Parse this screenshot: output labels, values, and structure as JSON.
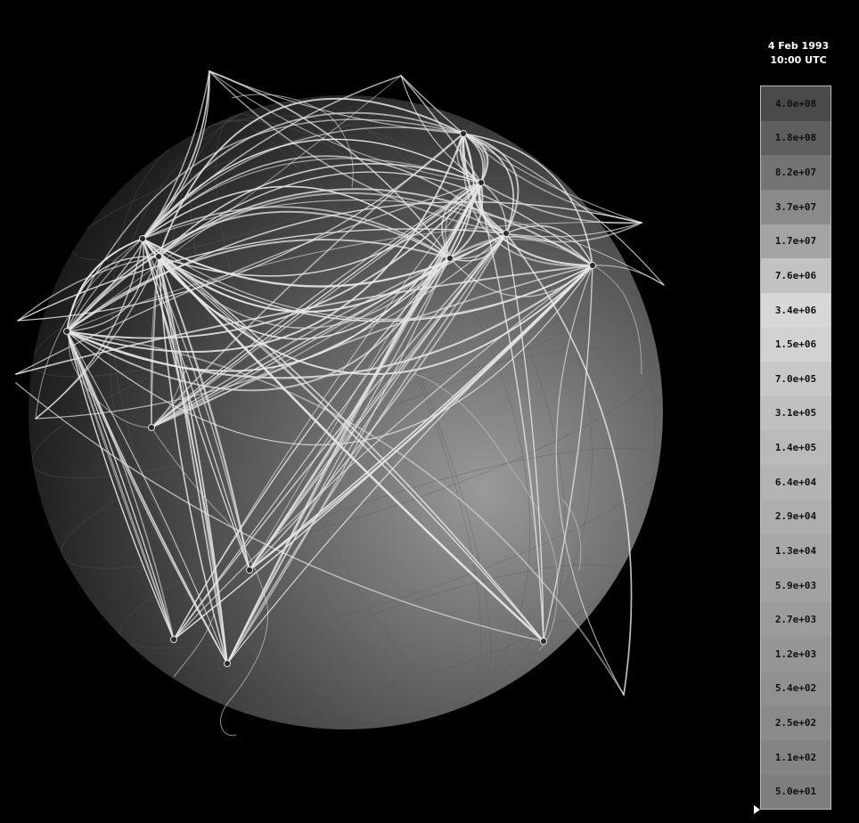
{
  "timestamp": {
    "date": "4 Feb 1993",
    "time": "10:00 UTC"
  },
  "legend": {
    "items": [
      {
        "label": "4.0e+08",
        "color": "#4a4a4a"
      },
      {
        "label": "1.8e+08",
        "color": "#5e5e5e"
      },
      {
        "label": "8.2e+07",
        "color": "#747474"
      },
      {
        "label": "3.7e+07",
        "color": "#8a8a8a"
      },
      {
        "label": "1.7e+07",
        "color": "#a4a4a4"
      },
      {
        "label": "7.6e+06",
        "color": "#c2c2c2"
      },
      {
        "label": "3.4e+06",
        "color": "#d8d8d8"
      },
      {
        "label": "1.5e+06",
        "color": "#d2d2d2"
      },
      {
        "label": "7.0e+05",
        "color": "#c8c8c8"
      },
      {
        "label": "3.1e+05",
        "color": "#c0c0c0"
      },
      {
        "label": "1.4e+05",
        "color": "#bababa"
      },
      {
        "label": "6.4e+04",
        "color": "#b4b4b4"
      },
      {
        "label": "2.9e+04",
        "color": "#aeaeae"
      },
      {
        "label": "1.3e+04",
        "color": "#a8a8a8"
      },
      {
        "label": "5.9e+03",
        "color": "#a2a2a2"
      },
      {
        "label": "2.7e+03",
        "color": "#9c9c9c"
      },
      {
        "label": "1.2e+03",
        "color": "#969696"
      },
      {
        "label": "5.4e+02",
        "color": "#909090"
      },
      {
        "label": "2.5e+02",
        "color": "#8a8a8a"
      },
      {
        "label": "1.1e+02",
        "color": "#848484"
      },
      {
        "label": "5.0e+01",
        "color": "#7e7e7e"
      }
    ]
  },
  "map": {
    "background_color": "#000000",
    "globe_light_color": "#9a9a9a",
    "globe_dark_color": "#151515",
    "arc_color": "#e6e6e6"
  }
}
